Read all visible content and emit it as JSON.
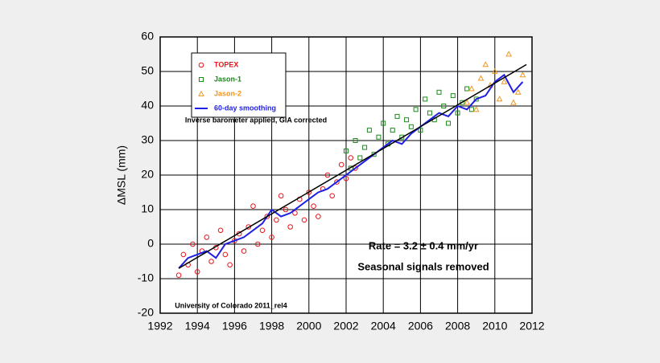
{
  "chart_data": {
    "type": "scatter",
    "ylabel": "ΔMSL (mm)",
    "annotations": [
      "Inverse barometer applied, GIA corrected",
      "Rate = 3.2 ± 0.4 mm/yr",
      "Seasonal signals removed",
      "University of Colorado 2011_rel4"
    ],
    "xlim": [
      1992,
      2012
    ],
    "xticks": [
      1992,
      1994,
      1996,
      1998,
      2000,
      2002,
      2004,
      2006,
      2008,
      2010,
      2012
    ],
    "ylim": [
      -20,
      60
    ],
    "yticks": [
      -20,
      -10,
      0,
      10,
      20,
      30,
      40,
      50,
      60
    ],
    "grid": true,
    "legend": "upper left",
    "series": [
      {
        "name": "TOPEX",
        "color": "#e8151b",
        "marker": "circle",
        "x": [
          1993.0,
          1993.25,
          1993.5,
          1993.75,
          1994.0,
          1994.25,
          1994.5,
          1994.75,
          1995.0,
          1995.25,
          1995.5,
          1995.75,
          1996.0,
          1996.25,
          1996.5,
          1996.75,
          1997.0,
          1997.25,
          1997.5,
          1997.75,
          1998.0,
          1998.25,
          1998.5,
          1998.75,
          1999.0,
          1999.25,
          1999.5,
          1999.75,
          2000.0,
          2000.25,
          2000.5,
          2000.75,
          2001.0,
          2001.25,
          2001.5,
          2001.75,
          2002.0,
          2002.25,
          2002.5
        ],
        "values": [
          -9,
          -3,
          -6,
          0,
          -8,
          -2,
          2,
          -5,
          -1,
          4,
          -3,
          -6,
          1,
          3,
          -2,
          5,
          11,
          0,
          4,
          8,
          2,
          7,
          14,
          10,
          5,
          9,
          13,
          7,
          15,
          11,
          8,
          16,
          20,
          14,
          18,
          23,
          19,
          25,
          22
        ]
      },
      {
        "name": "Jason-1",
        "color": "#1a8a1a",
        "marker": "square",
        "x": [
          2002.0,
          2002.25,
          2002.5,
          2002.75,
          2003.0,
          2003.25,
          2003.5,
          2003.75,
          2004.0,
          2004.25,
          2004.5,
          2004.75,
          2005.0,
          2005.25,
          2005.5,
          2005.75,
          2006.0,
          2006.25,
          2006.5,
          2006.75,
          2007.0,
          2007.25,
          2007.5,
          2007.75,
          2008.0,
          2008.25,
          2008.5,
          2008.75,
          2009.0
        ],
        "values": [
          27,
          22,
          30,
          25,
          28,
          33,
          26,
          31,
          35,
          29,
          33,
          37,
          31,
          36,
          34,
          39,
          33,
          42,
          38,
          36,
          44,
          40,
          35,
          43,
          38,
          41,
          45,
          39,
          42
        ]
      },
      {
        "name": "Jason-2",
        "color": "#f0961e",
        "marker": "triangle",
        "x": [
          2008.5,
          2008.75,
          2009.0,
          2009.25,
          2009.5,
          2009.75,
          2010.0,
          2010.25,
          2010.5,
          2010.75,
          2011.0,
          2011.25,
          2011.5
        ],
        "values": [
          41,
          45,
          39,
          48,
          52,
          46,
          50,
          42,
          47,
          55,
          41,
          44,
          49
        ]
      },
      {
        "name": "60-day smoothing",
        "color": "#1f1fe6",
        "marker": "line",
        "x": [
          1993.0,
          1993.5,
          1994.0,
          1994.5,
          1995.0,
          1995.5,
          1996.0,
          1996.5,
          1997.0,
          1997.5,
          1998.0,
          1998.5,
          1999.0,
          1999.5,
          2000.0,
          2000.5,
          2001.0,
          2001.5,
          2002.0,
          2002.5,
          2003.0,
          2003.5,
          2004.0,
          2004.5,
          2005.0,
          2005.5,
          2006.0,
          2006.5,
          2007.0,
          2007.5,
          2008.0,
          2008.5,
          2009.0,
          2009.5,
          2010.0,
          2010.5,
          2011.0,
          2011.5
        ],
        "values": [
          -7,
          -4,
          -3,
          -2,
          -4,
          0,
          1,
          2,
          4,
          6,
          10,
          8,
          9,
          11,
          13,
          15,
          16,
          18,
          20,
          22,
          24,
          26,
          28,
          30,
          29,
          32,
          34,
          36,
          38,
          37,
          40,
          39,
          42,
          43,
          47,
          49,
          44,
          47
        ]
      }
    ],
    "trend": {
      "color": "#000000",
      "x": [
        1993.0,
        2011.7
      ],
      "values": [
        -7,
        52
      ]
    }
  }
}
